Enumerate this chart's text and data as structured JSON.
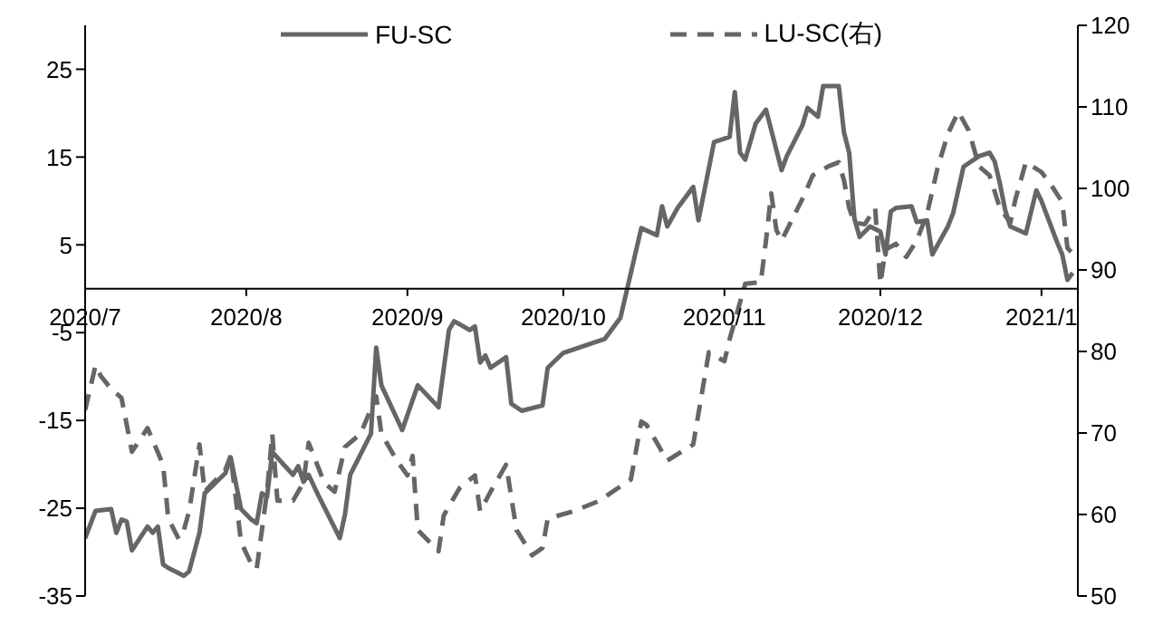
{
  "chart_data": {
    "type": "line",
    "legend": "top",
    "xlim": [
      "2020-07-01",
      "2021-01-08"
    ],
    "xticks": [
      {
        "value": "2020-07-01",
        "label": "2020/7"
      },
      {
        "value": "2020-08-01",
        "label": "2020/8"
      },
      {
        "value": "2020-09-01",
        "label": "2020/9"
      },
      {
        "value": "2020-10-01",
        "label": "2020/10"
      },
      {
        "value": "2020-11-01",
        "label": "2020/11"
      },
      {
        "value": "2020-12-01",
        "label": "2020/12"
      },
      {
        "value": "2021-01-01",
        "label": "2021/1"
      }
    ],
    "ylim": [
      -35,
      30
    ],
    "yticks": [
      -35,
      -25,
      -15,
      -5,
      5,
      15,
      25
    ],
    "y2lim": [
      50,
      120
    ],
    "y2ticks": [
      50,
      60,
      70,
      80,
      90,
      100,
      110,
      120
    ],
    "series": [
      {
        "name": "FU-SC",
        "color": "#666666",
        "line_style": "solid",
        "x": [
          "2020-07-01",
          "2020-07-03",
          "2020-07-06",
          "2020-07-07",
          "2020-07-08",
          "2020-07-09",
          "2020-07-10",
          "2020-07-13",
          "2020-07-14",
          "2020-07-15",
          "2020-07-16",
          "2020-07-17",
          "2020-07-20",
          "2020-07-21",
          "2020-07-23",
          "2020-07-24",
          "2020-07-28",
          "2020-07-29",
          "2020-07-31",
          "2020-08-02",
          "2020-08-03",
          "2020-08-04",
          "2020-08-05",
          "2020-08-06",
          "2020-08-10",
          "2020-08-11",
          "2020-08-12",
          "2020-08-13",
          "2020-08-15",
          "2020-08-19",
          "2020-08-20",
          "2020-08-21",
          "2020-08-25",
          "2020-08-26",
          "2020-08-27",
          "2020-08-31",
          "2020-09-03",
          "2020-09-07",
          "2020-09-09",
          "2020-09-10",
          "2020-09-13",
          "2020-09-14",
          "2020-09-15",
          "2020-09-16",
          "2020-09-17",
          "2020-09-20",
          "2020-09-21",
          "2020-09-23",
          "2020-09-27",
          "2020-09-28",
          "2020-10-01",
          "2020-10-09",
          "2020-10-12",
          "2020-10-16",
          "2020-10-19",
          "2020-10-20",
          "2020-10-21",
          "2020-10-23",
          "2020-10-26",
          "2020-10-27",
          "2020-10-30",
          "2020-11-02",
          "2020-11-03",
          "2020-11-04",
          "2020-11-05",
          "2020-11-07",
          "2020-11-09",
          "2020-11-12",
          "2020-11-13",
          "2020-11-16",
          "2020-11-17",
          "2020-11-19",
          "2020-11-20",
          "2020-11-23",
          "2020-11-24",
          "2020-11-25",
          "2020-11-26",
          "2020-11-27",
          "2020-11-29",
          "2020-12-01",
          "2020-12-02",
          "2020-12-03",
          "2020-12-04",
          "2020-12-07",
          "2020-12-08",
          "2020-12-10",
          "2020-12-11",
          "2020-12-14",
          "2020-12-15",
          "2020-12-17",
          "2020-12-20",
          "2020-12-22",
          "2020-12-23",
          "2020-12-24",
          "2020-12-25",
          "2020-12-26",
          "2020-12-29",
          "2020-12-31",
          "2021-01-01",
          "2021-01-04",
          "2021-01-05",
          "2021-01-06",
          "2021-01-07"
        ],
        "values": [
          -28.4,
          -25.3,
          -25.1,
          -27.8,
          -26.3,
          -26.5,
          -29.8,
          -27.1,
          -27.8,
          -27.1,
          -31.4,
          -31.8,
          -32.7,
          -32.2,
          -27.8,
          -23.3,
          -21,
          -19.2,
          -25.1,
          -26.3,
          -26.7,
          -23.3,
          -23.7,
          -18.6,
          -21.2,
          -20.2,
          -22,
          -21.2,
          -23.7,
          -28.4,
          -25.7,
          -21.2,
          -16.5,
          -6.7,
          -11,
          -16.1,
          -11,
          -13.5,
          -4.7,
          -3.7,
          -4.7,
          -4.3,
          -8.4,
          -7.6,
          -9,
          -7.8,
          -13.1,
          -13.9,
          -13.3,
          -9,
          -7.3,
          -5.7,
          -3.3,
          6.9,
          6.1,
          9.4,
          7.1,
          9.2,
          11.6,
          7.8,
          16.7,
          17.3,
          22.4,
          15.5,
          14.7,
          18.8,
          20.4,
          13.5,
          15.1,
          18.6,
          20.6,
          19.6,
          23.1,
          23.1,
          17.8,
          15.5,
          8,
          5.9,
          7.1,
          6.5,
          3.9,
          8.8,
          9.2,
          9.4,
          7.6,
          7.8,
          3.9,
          7.1,
          8.6,
          13.9,
          15.1,
          15.5,
          14.5,
          12,
          9,
          7.1,
          6.3,
          11.2,
          10,
          5.3,
          3.9,
          1,
          1.8
        ]
      },
      {
        "name": "LU-SC(右)",
        "color": "#666666",
        "line_style": "dashed",
        "axis": "y2",
        "x": [
          "2020-07-01",
          "2020-07-03",
          "2020-07-04",
          "2020-07-06",
          "2020-07-08",
          "2020-07-10",
          "2020-07-13",
          "2020-07-16",
          "2020-07-17",
          "2020-07-19",
          "2020-07-20",
          "2020-07-21",
          "2020-07-23",
          "2020-07-24",
          "2020-07-28",
          "2020-07-29",
          "2020-07-31",
          "2020-08-02",
          "2020-08-03",
          "2020-08-05",
          "2020-08-06",
          "2020-08-07",
          "2020-08-10",
          "2020-08-12",
          "2020-08-13",
          "2020-08-16",
          "2020-08-18",
          "2020-08-20",
          "2020-08-23",
          "2020-08-26",
          "2020-08-27",
          "2020-08-30",
          "2020-09-01",
          "2020-09-02",
          "2020-09-03",
          "2020-09-07",
          "2020-09-08",
          "2020-09-11",
          "2020-09-14",
          "2020-09-15",
          "2020-09-17",
          "2020-09-20",
          "2020-09-22",
          "2020-09-25",
          "2020-09-27",
          "2020-09-28",
          "2020-10-03",
          "2020-10-08",
          "2020-10-13",
          "2020-10-14",
          "2020-10-16",
          "2020-10-17",
          "2020-10-21",
          "2020-10-26",
          "2020-10-29",
          "2020-11-01",
          "2020-11-02",
          "2020-11-05",
          "2020-11-08",
          "2020-11-09",
          "2020-11-10",
          "2020-11-11",
          "2020-11-12",
          "2020-11-16",
          "2020-11-18",
          "2020-11-21",
          "2020-11-23",
          "2020-11-24",
          "2020-11-25",
          "2020-11-26",
          "2020-11-28",
          "2020-11-30",
          "2020-12-01",
          "2020-12-02",
          "2020-12-04",
          "2020-12-06",
          "2020-12-08",
          "2020-12-10",
          "2020-12-12",
          "2020-12-14",
          "2020-12-16",
          "2020-12-18",
          "2020-12-20",
          "2020-12-22",
          "2020-12-24",
          "2020-12-26",
          "2020-12-27",
          "2020-12-29",
          "2021-01-01",
          "2021-01-03",
          "2021-01-05",
          "2021-01-06",
          "2021-01-07"
        ],
        "values": [
          72.8,
          78.3,
          77,
          75.4,
          74.3,
          67.7,
          70.6,
          66.1,
          59.5,
          57,
          58.1,
          60.4,
          68.6,
          62.8,
          65.5,
          67.2,
          56.6,
          53.9,
          53.3,
          62.8,
          69.9,
          61.7,
          61.7,
          63.9,
          68.8,
          63.9,
          62.8,
          68.3,
          69.9,
          74.5,
          69.9,
          66.6,
          64.8,
          67.2,
          58.1,
          55.5,
          59.9,
          63.2,
          64.8,
          60.4,
          62.8,
          66.1,
          58.1,
          55,
          55.9,
          59.5,
          60.4,
          61.7,
          63.9,
          64.3,
          71.4,
          71,
          66.6,
          68.6,
          79.9,
          78.8,
          81.5,
          88.3,
          88.5,
          93.6,
          99.4,
          94.9,
          93.6,
          98.7,
          101.6,
          102.7,
          103.2,
          101,
          97.6,
          95.8,
          95.6,
          97.6,
          88.3,
          92.5,
          93.2,
          91.6,
          93.6,
          96.9,
          102.5,
          106.7,
          109.4,
          107.1,
          102.7,
          101.6,
          97.6,
          95.8,
          98.7,
          103.2,
          102,
          100.3,
          98.3,
          92.7,
          92
        ]
      }
    ]
  }
}
